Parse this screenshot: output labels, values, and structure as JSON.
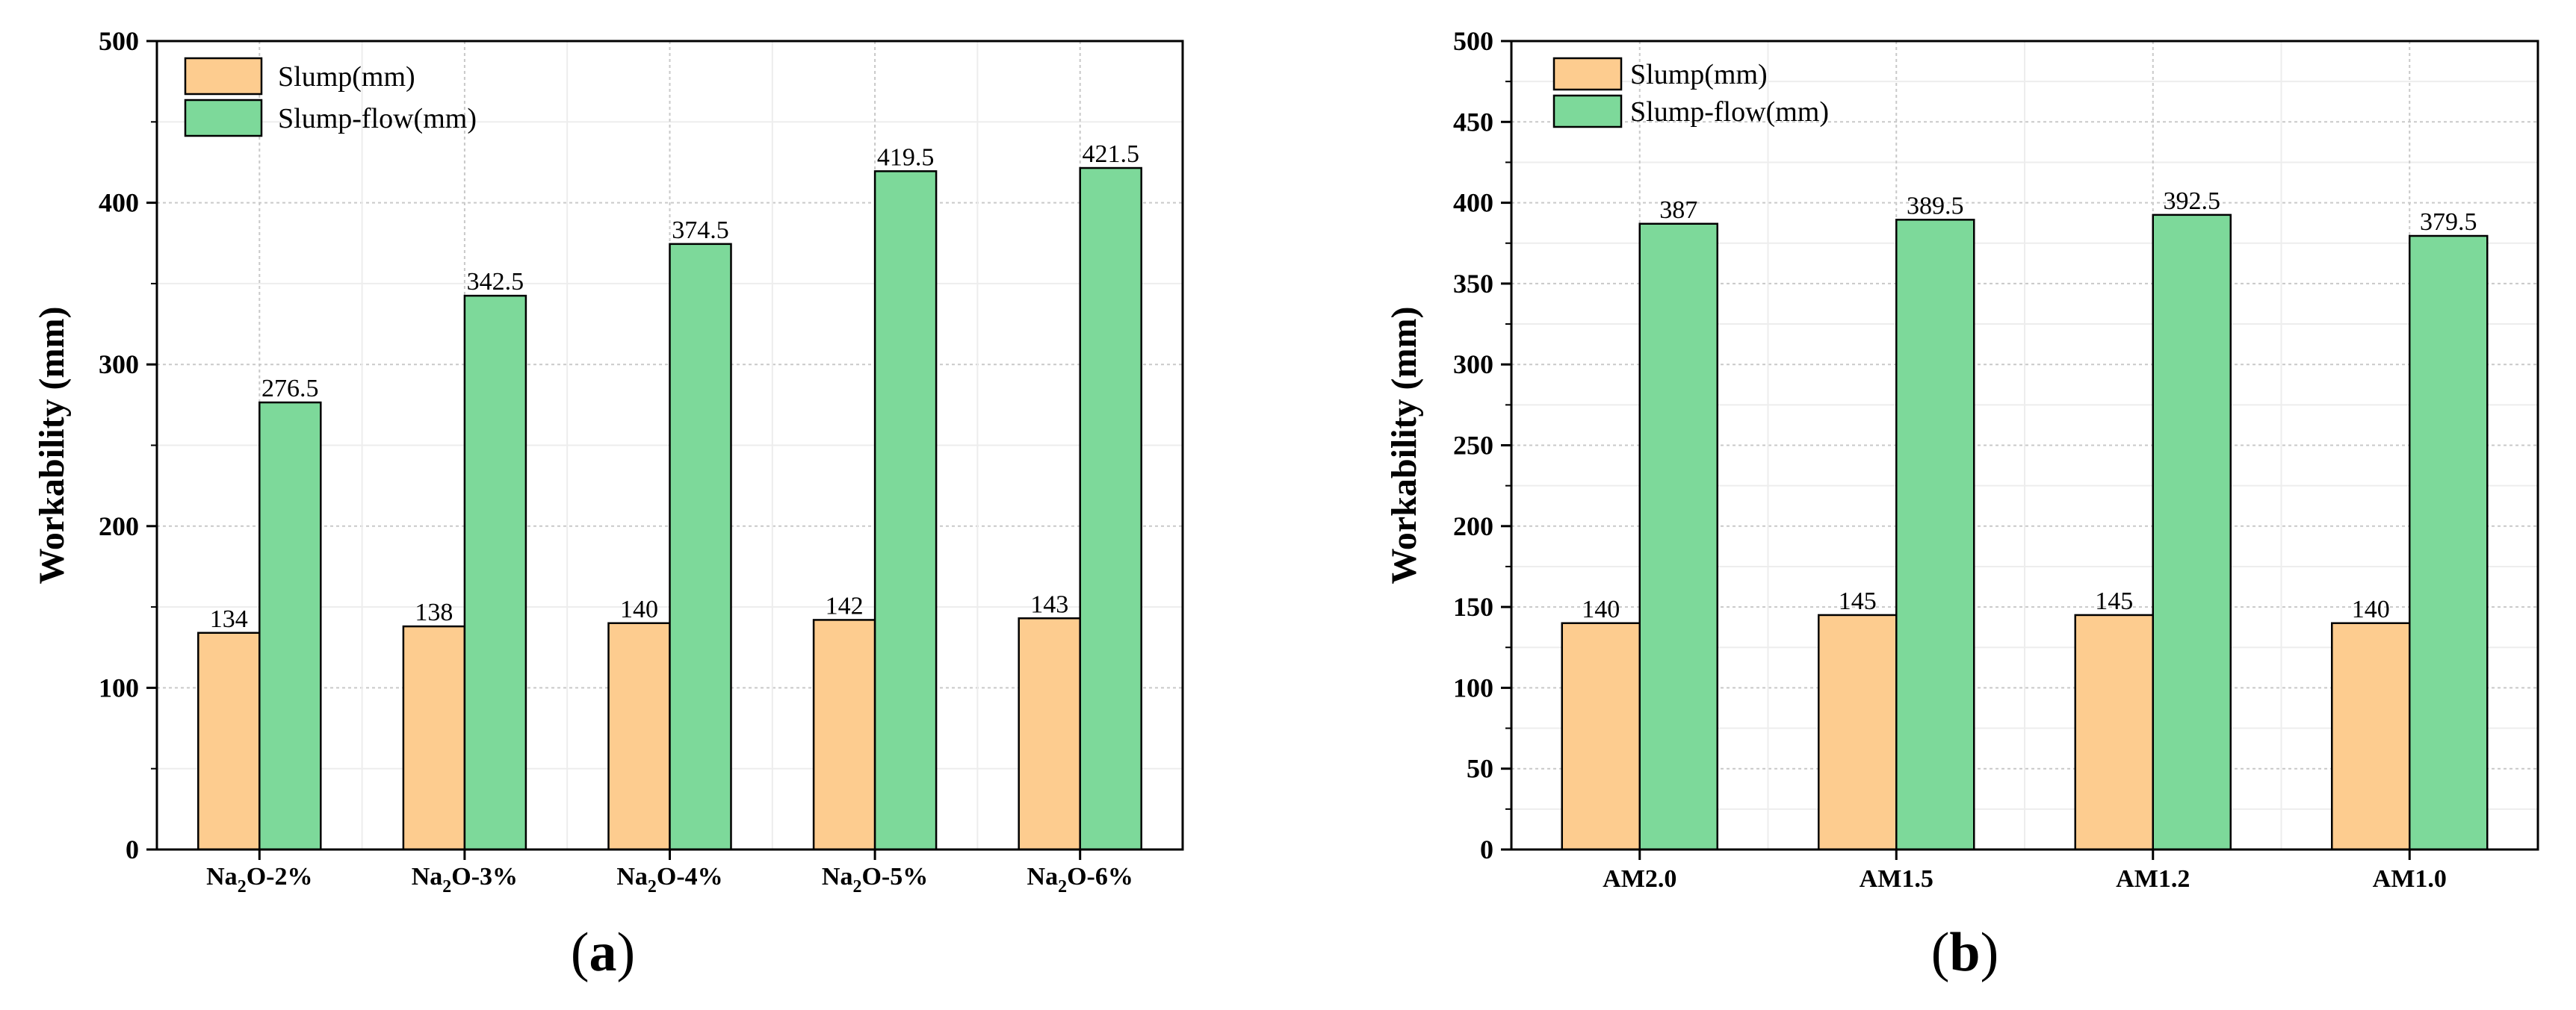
{
  "chart_data": [
    {
      "type": "bar",
      "panel_label": "(a)",
      "ylabel": "Workability (mm)",
      "xlabel": "",
      "ylim": [
        0,
        500
      ],
      "yticks": [
        0,
        100,
        200,
        300,
        400,
        500
      ],
      "grid": true,
      "legend_position": "top-left",
      "categories": [
        {
          "base": "Na",
          "sub": "2",
          "rest": "O-2%"
        },
        {
          "base": "Na",
          "sub": "2",
          "rest": "O-3%"
        },
        {
          "base": "Na",
          "sub": "2",
          "rest": "O-4%"
        },
        {
          "base": "Na",
          "sub": "2",
          "rest": "O-5%"
        },
        {
          "base": "Na",
          "sub": "2",
          "rest": "O-6%"
        }
      ],
      "series": [
        {
          "name": "Slump(mm)",
          "color": "#FDCC8F",
          "values": [
            134,
            138,
            140,
            142,
            143
          ],
          "labels": [
            "134",
            "138",
            "140",
            "142",
            "143"
          ]
        },
        {
          "name": "Slump-flow(mm)",
          "color": "#7DD99A",
          "values": [
            276.5,
            342.5,
            374.5,
            419.5,
            421.5
          ],
          "labels": [
            "276.5",
            "342.5",
            "374.5",
            "419.5",
            "421.5"
          ]
        }
      ]
    },
    {
      "type": "bar",
      "panel_label": "(b)",
      "ylabel": "Workability (mm)",
      "xlabel": "",
      "ylim": [
        0,
        500
      ],
      "yticks": [
        0,
        50,
        100,
        150,
        200,
        250,
        300,
        350,
        400,
        450,
        500
      ],
      "grid": true,
      "legend_position": "top-left",
      "categories": [
        {
          "base": "AM2.0",
          "sub": "",
          "rest": ""
        },
        {
          "base": "AM1.5",
          "sub": "",
          "rest": ""
        },
        {
          "base": "AM1.2",
          "sub": "",
          "rest": ""
        },
        {
          "base": "AM1.0",
          "sub": "",
          "rest": ""
        }
      ],
      "series": [
        {
          "name": "Slump(mm)",
          "color": "#FDCC8F",
          "values": [
            140,
            145,
            145,
            140
          ],
          "labels": [
            "140",
            "145",
            "145",
            "140"
          ]
        },
        {
          "name": "Slump-flow(mm)",
          "color": "#7DD99A",
          "values": [
            387,
            389.5,
            392.5,
            379.5
          ],
          "labels": [
            "387",
            "389.5",
            "392.5",
            "379.5"
          ]
        }
      ]
    }
  ]
}
